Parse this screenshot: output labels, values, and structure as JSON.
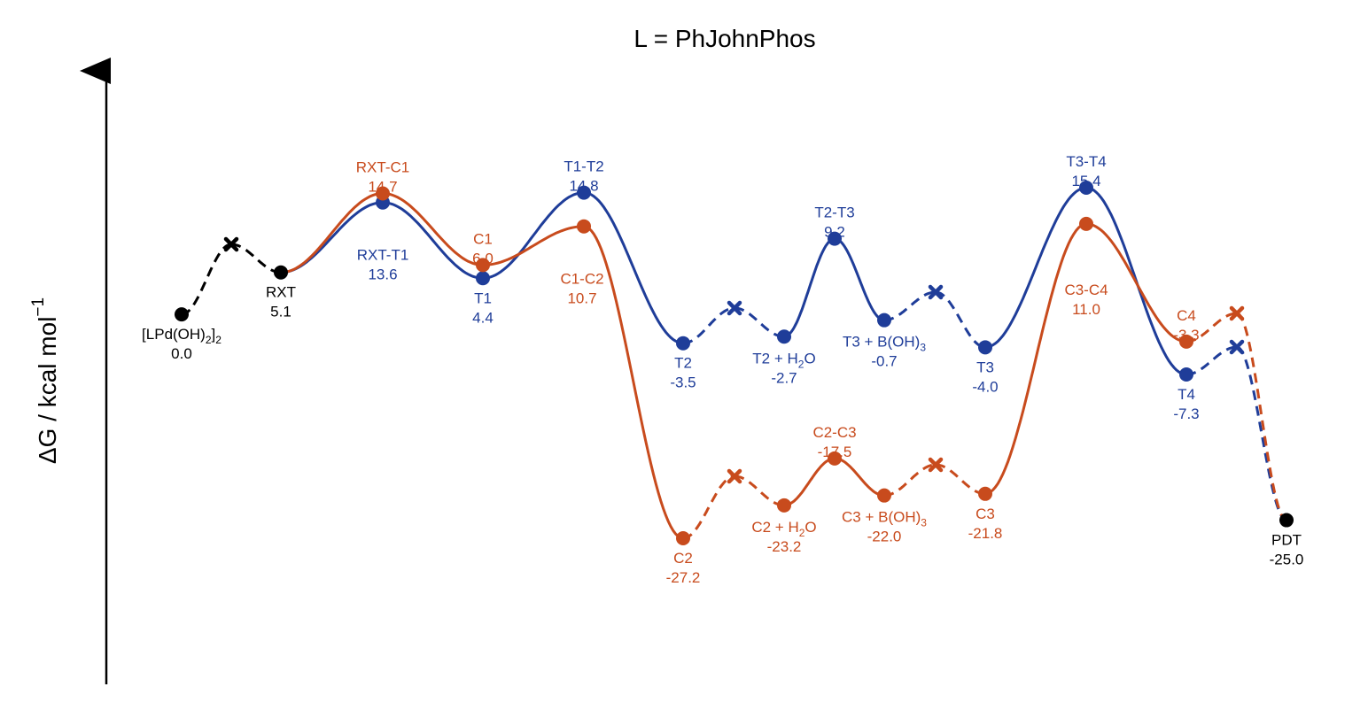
{
  "chart_data": {
    "type": "line",
    "title": "L = PhJohnPhos",
    "ylabel": "ΔG / kcal mol",
    "ylabel_sup": "−1",
    "xlabel": "",
    "grid": false,
    "legend": "none",
    "colors": {
      "black": "#000000",
      "blue": "#1f3d99",
      "orange": "#c84b1d"
    },
    "series": [
      {
        "name": "",
        "color": "black",
        "points": [
          {
            "label": "[LPd(OH)",
            "sub": "2",
            "label_tail": "]",
            "sub2": "2",
            "value": "0.0",
            "y": 0.0,
            "marker": "dot"
          },
          {
            "value": null,
            "y": null,
            "marker": "cross"
          },
          {
            "label": "RXT",
            "value": "5.1",
            "y": 5.1,
            "marker": "dot"
          }
        ]
      },
      {
        "name": "",
        "color": "blue",
        "points": [
          {
            "label": "RXT-T1",
            "value": "13.6",
            "y": 13.6,
            "marker": "dot"
          },
          {
            "label": "T1",
            "value": "4.4",
            "y": 4.4,
            "marker": "dot"
          },
          {
            "label": "T1-T2",
            "value": "14.8",
            "y": 14.8,
            "marker": "dot"
          },
          {
            "label": "T2",
            "value": "-3.5",
            "y": -3.5,
            "marker": "dot"
          },
          {
            "value": null,
            "y": null,
            "marker": "cross"
          },
          {
            "label": "T2 + H",
            "sub": "2",
            "label_tail": "O",
            "value": "-2.7",
            "y": -2.7,
            "marker": "dot"
          },
          {
            "label": "T2-T3",
            "value": "9.2",
            "y": 9.2,
            "marker": "dot"
          },
          {
            "label": "T3 + B(OH)",
            "sub": "3",
            "value": "-0.7",
            "y": -0.7,
            "marker": "dot"
          },
          {
            "value": null,
            "y": null,
            "marker": "cross"
          },
          {
            "label": "T3",
            "value": "-4.0",
            "y": -4.0,
            "marker": "dot"
          },
          {
            "label": "T3-T4",
            "value": "15.4",
            "y": 15.4,
            "marker": "dot"
          },
          {
            "label": "T4",
            "value": "-7.3",
            "y": -7.3,
            "marker": "dot"
          },
          {
            "value": null,
            "y": null,
            "marker": "cross"
          }
        ]
      },
      {
        "name": "",
        "color": "orange",
        "points": [
          {
            "label": "RXT-C1",
            "value": "14.7",
            "y": 14.7,
            "marker": "dot"
          },
          {
            "label": "C1",
            "value": "6.0",
            "y": 6.0,
            "marker": "dot"
          },
          {
            "label": "C1-C2",
            "value": "10.7",
            "y": 10.7,
            "marker": "dot"
          },
          {
            "label": "C2",
            "value": "-27.2",
            "y": -27.2,
            "marker": "dot"
          },
          {
            "value": null,
            "y": null,
            "marker": "cross"
          },
          {
            "label": "C2 + H",
            "sub": "2",
            "label_tail": "O",
            "value": "-23.2",
            "y": -23.2,
            "marker": "dot"
          },
          {
            "label": "C2-C3",
            "value": "-17.5",
            "y": -17.5,
            "marker": "dot"
          },
          {
            "label": "C3 + B(OH)",
            "sub": "3",
            "value": "-22.0",
            "y": -22.0,
            "marker": "dot"
          },
          {
            "value": null,
            "y": null,
            "marker": "cross"
          },
          {
            "label": "C3",
            "value": "-21.8",
            "y": -21.8,
            "marker": "dot"
          },
          {
            "label": "C3-C4",
            "value": "11.0",
            "y": 11.0,
            "marker": "dot"
          },
          {
            "label": "C4",
            "value": "-3.3",
            "y": -3.3,
            "marker": "dot"
          },
          {
            "value": null,
            "y": null,
            "marker": "cross"
          }
        ]
      },
      {
        "name": "",
        "color": "black",
        "points": [
          {
            "label": "PDT",
            "value": "-25.0",
            "y": -25.0,
            "marker": "dot"
          }
        ]
      }
    ]
  }
}
